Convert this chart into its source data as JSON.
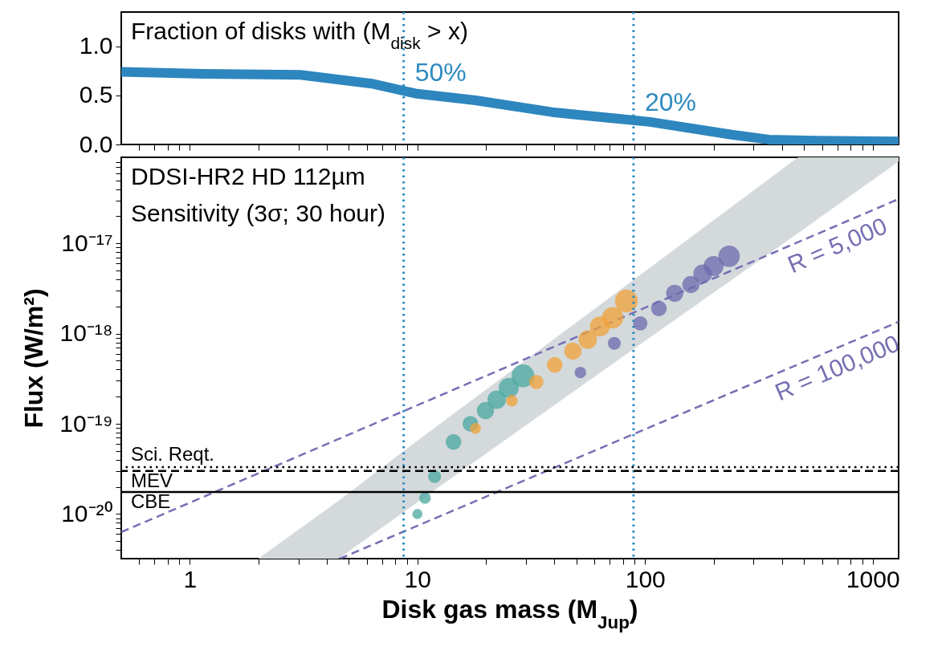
{
  "chart_data": [
    {
      "type": "line",
      "title": "Fraction of disks with (M$_{disk}$ > x)",
      "log": "x",
      "tick_labels": "y",
      "color": "#2e86be",
      "x": [
        0.5,
        1.15,
        3.06,
        6.3,
        9.8,
        18,
        39,
        105,
        240,
        350,
        510,
        1300
      ],
      "values": [
        0.74,
        0.72,
        0.71,
        0.62,
        0.52,
        0.45,
        0.33,
        0.23,
        0.1,
        0.05,
        0.04,
        0.03
      ],
      "xlim": [
        0.5,
        1300
      ],
      "ylim": [
        0,
        1.35
      ],
      "xticks": [
        {
          "value": 0.6,
          "label": null
        },
        {
          "value": 0.7,
          "label": null
        },
        {
          "value": 0.8,
          "label": null
        },
        {
          "value": 0.9,
          "label": null
        },
        1,
        {
          "value": 2,
          "label": null
        },
        {
          "value": 3,
          "label": null
        },
        {
          "value": 4,
          "label": null
        },
        {
          "value": 5,
          "label": null
        },
        {
          "value": 6,
          "label": null
        },
        {
          "value": 7,
          "label": null
        },
        {
          "value": 8,
          "label": null
        },
        {
          "value": 9,
          "label": null
        },
        10,
        {
          "value": 20,
          "label": null
        },
        {
          "value": 30,
          "label": null
        },
        {
          "value": 40,
          "label": null
        },
        {
          "value": 50,
          "label": null
        },
        {
          "value": 60,
          "label": null
        },
        {
          "value": 70,
          "label": null
        },
        {
          "value": 80,
          "label": null
        },
        {
          "value": 90,
          "label": null
        },
        100,
        {
          "value": 200,
          "label": null
        },
        {
          "value": 300,
          "label": null
        },
        {
          "value": 400,
          "label": null
        },
        {
          "value": 500,
          "label": null
        },
        {
          "value": 600,
          "label": null
        },
        {
          "value": 700,
          "label": null
        },
        {
          "value": 800,
          "label": null
        },
        {
          "value": 900,
          "label": null
        },
        1000
      ],
      "yticks": [
        {
          "value": 0,
          "label": "0.0"
        },
        {
          "value": 0.5,
          "label": "0.5"
        },
        {
          "value": 1,
          "label": "1.0"
        }
      ],
      "ref_lines": [
        {
          "axis": "x",
          "value": 8.7,
          "color": "#2e8bc0",
          "line_style": "dotted"
        },
        {
          "axis": "x",
          "value": 89,
          "color": "#2e8bc0",
          "line_style": "dotted"
        }
      ],
      "annotations": [
        {
          "text": "50%",
          "x": 8.7,
          "y": 0.5
        },
        {
          "text": "20%",
          "x": 89,
          "y": 0.2
        }
      ]
    },
    {
      "type": "bubble",
      "title": "DDSI-HR2 HD 112µm",
      "subtitle": "Sensitivity (3σ; 30 hour)",
      "xlabel": "Disk gas mass (M$_{Jup}$)",
      "ylabel": "Flux (W/m²)",
      "log": "xy",
      "xlim": [
        0.5,
        1300
      ],
      "ylim": [
        3.2e-21,
        9e-17
      ],
      "xticks": [
        {
          "value": 0.6,
          "label": null
        },
        {
          "value": 0.7,
          "label": null
        },
        {
          "value": 0.8,
          "label": null
        },
        {
          "value": 0.9,
          "label": null
        },
        1,
        {
          "value": 2,
          "label": null
        },
        {
          "value": 3,
          "label": null
        },
        {
          "value": 4,
          "label": null
        },
        {
          "value": 5,
          "label": null
        },
        {
          "value": 6,
          "label": null
        },
        {
          "value": 7,
          "label": null
        },
        {
          "value": 8,
          "label": null
        },
        {
          "value": 9,
          "label": null
        },
        10,
        {
          "value": 20,
          "label": null
        },
        {
          "value": 30,
          "label": null
        },
        {
          "value": 40,
          "label": null
        },
        {
          "value": 50,
          "label": null
        },
        {
          "value": 60,
          "label": null
        },
        {
          "value": 70,
          "label": null
        },
        {
          "value": 80,
          "label": null
        },
        {
          "value": 90,
          "label": null
        },
        100,
        {
          "value": 200,
          "label": null
        },
        {
          "value": 300,
          "label": null
        },
        {
          "value": 400,
          "label": null
        },
        {
          "value": 500,
          "label": null
        },
        {
          "value": 600,
          "label": null
        },
        {
          "value": 700,
          "label": null
        },
        {
          "value": 800,
          "label": null
        },
        {
          "value": 900,
          "label": null
        },
        1000
      ],
      "yticks": [
        {
          "value": 4e-21,
          "label": null
        },
        {
          "value": 5e-21,
          "label": null
        },
        {
          "value": 6e-21,
          "label": null
        },
        {
          "value": 7e-21,
          "label": null
        },
        {
          "value": 8e-21,
          "label": null
        },
        {
          "value": 9e-21,
          "label": null
        },
        {
          "value": 1e-20,
          "label": "10⁻²⁰"
        },
        {
          "value": 2e-20,
          "label": null
        },
        {
          "value": 3e-20,
          "label": null
        },
        {
          "value": 4e-20,
          "label": null
        },
        {
          "value": 5e-20,
          "label": null
        },
        {
          "value": 6e-20,
          "label": null
        },
        {
          "value": 7e-20,
          "label": null
        },
        {
          "value": 8e-20,
          "label": null
        },
        {
          "value": 9e-20,
          "label": null
        },
        {
          "value": 1e-19,
          "label": "10⁻¹⁹"
        },
        {
          "value": 2e-19,
          "label": null
        },
        {
          "value": 3e-19,
          "label": null
        },
        {
          "value": 4e-19,
          "label": null
        },
        {
          "value": 5e-19,
          "label": null
        },
        {
          "value": 6e-19,
          "label": null
        },
        {
          "value": 7e-19,
          "label": null
        },
        {
          "value": 8e-19,
          "label": null
        },
        {
          "value": 9e-19,
          "label": null
        },
        {
          "value": 1e-18,
          "label": "10⁻¹⁸"
        },
        {
          "value": 2e-18,
          "label": null
        },
        {
          "value": 3e-18,
          "label": null
        },
        {
          "value": 4e-18,
          "label": null
        },
        {
          "value": 5e-18,
          "label": null
        },
        {
          "value": 6e-18,
          "label": null
        },
        {
          "value": 7e-18,
          "label": null
        },
        {
          "value": 8e-18,
          "label": null
        },
        {
          "value": 9e-18,
          "label": null
        },
        {
          "value": 1e-17,
          "label": "10⁻¹⁷"
        },
        {
          "value": 2e-17,
          "label": null
        },
        {
          "value": 3e-17,
          "label": null
        },
        {
          "value": 4e-17,
          "label": null
        },
        {
          "value": 5e-17,
          "label": null
        },
        {
          "value": 6e-17,
          "label": null
        },
        {
          "value": 7e-17,
          "label": null
        },
        {
          "value": 8e-17,
          "label": null
        }
      ],
      "series": [
        {
          "type": "area",
          "color": "#d4d9dc",
          "x": [
            2,
            4.5,
            10,
            100,
            470,
            1300
          ],
          "values": [
            null,
            null,
            null,
            null,
            null,
            null
          ],
          "lower": [
            3.2e-21,
            3.2e-21,
            1.35e-20,
            8.3e-19,
            1.3e-17,
            8.1e-17
          ],
          "upper": [
            3.2e-21,
            1.4e-20,
            6.5e-20,
            4.9e-18,
            9e-17,
            9e-17
          ]
        },
        {
          "type": "line",
          "name": "R = 5,000",
          "color": "#7570b3",
          "line_style": "dashed",
          "x": [
            0.5,
            1300
          ],
          "values": [
            6.3e-21,
            3.1e-17
          ]
        },
        {
          "type": "line",
          "name": "R = 100,000",
          "color": "#7570b3",
          "line_style": "dashed",
          "x": [
            4.56,
            1300
          ],
          "values": [
            3.2e-21,
            1.35e-18
          ]
        },
        {
          "color": "#4aa8a0",
          "x": [
            10,
            10.8,
            11.9,
            14.4,
            17.1,
            19.9,
            22.3,
            25.2,
            29.1
          ],
          "values": [
            1e-20,
            1.5e-20,
            2.6e-20,
            6.3e-20,
            1e-19,
            1.4e-19,
            1.85e-19,
            2.5e-19,
            3.4e-19
          ],
          "sizes": [
            0.16,
            0.22,
            0.28,
            0.44,
            0.44,
            0.54,
            0.64,
            0.75,
            1
          ]
        },
        {
          "color": "#f2a33a",
          "x": [
            18,
            26,
            33.3,
            40.1,
            48.2,
            56,
            63.3,
            72.1,
            82.8
          ],
          "values": [
            8.9e-20,
            1.8e-19,
            2.9e-19,
            4.5e-19,
            6.4e-19,
            8.6e-19,
            1.2e-18,
            1.5e-18,
            2.3e-18
          ],
          "sizes": [
            0.19,
            0.22,
            0.36,
            0.44,
            0.54,
            0.64,
            0.75,
            0.87,
            1
          ]
        },
        {
          "color": "#6e6aae",
          "x": [
            52,
            73.3,
            95.3,
            115,
            135,
            159,
            179,
            200,
            234
          ],
          "values": [
            3.7e-19,
            7.8e-19,
            1.3e-18,
            1.9e-18,
            2.8e-18,
            3.5e-18,
            4.6e-18,
            5.6e-18,
            7.2e-18
          ],
          "sizes": [
            0.22,
            0.28,
            0.36,
            0.44,
            0.54,
            0.54,
            0.64,
            0.75,
            0.87
          ]
        }
      ],
      "ref_lines": [
        {
          "axis": "x",
          "value": 8.7,
          "color": "#2e8bc0",
          "line_style": "dotted"
        },
        {
          "axis": "x",
          "value": 89,
          "color": "#2e8bc0",
          "line_style": "dotted"
        },
        {
          "axis": "y",
          "value": 3.3e-20,
          "label": "Sci. Reqt.",
          "color": "#000000",
          "line_style": "dotted"
        },
        {
          "axis": "y",
          "value": 3e-20,
          "label": "MEV",
          "color": "#000000",
          "line_style": "dashed"
        },
        {
          "axis": "y",
          "value": 1.75e-20,
          "label": "CBE",
          "color": "#000000",
          "line_style": "solid"
        }
      ]
    }
  ]
}
